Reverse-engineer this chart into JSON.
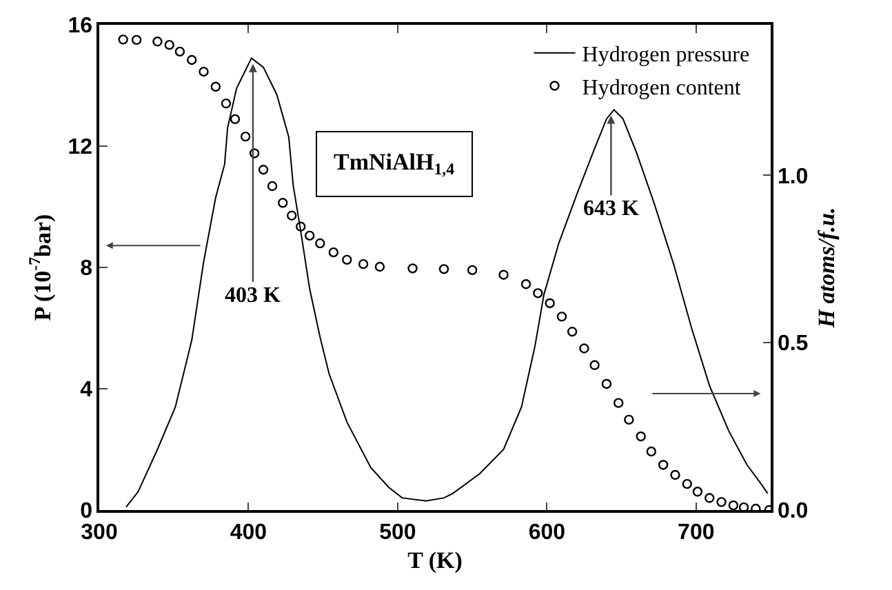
{
  "chart_data": {
    "type": "line",
    "xlabel": "T (K)",
    "ylabel": "P (10$^{-7}$bar)",
    "y2label": "H atoms/f.u.",
    "xlim": [
      300,
      750
    ],
    "xticks": [
      300,
      400,
      500,
      600,
      700
    ],
    "ylim": [
      0,
      16
    ],
    "yticks": [
      0,
      4,
      8,
      12,
      16
    ],
    "y2lim": [
      0,
      1.45
    ],
    "y2ticks": [
      {
        "value": 0,
        "label": "0.0"
      },
      {
        "value": 0.5,
        "label": "0.5"
      },
      {
        "value": 1,
        "label": "1.0"
      }
    ],
    "legend": "top right",
    "grid": false,
    "series": [
      {
        "name": "Hydrogen pressure",
        "type": "line",
        "color": "#000000",
        "marker": "none",
        "line_style": "solid",
        "x": [
          318,
          326,
          339,
          351,
          362,
          370,
          378,
          384,
          386,
          392,
          402,
          410,
          419,
          427,
          430,
          435,
          441,
          448,
          454,
          466,
          482,
          494,
          503,
          519,
          531,
          537,
          555,
          571,
          583,
          592,
          598,
          608,
          620,
          631,
          640,
          645,
          651,
          660,
          672,
          685,
          697,
          709,
          722,
          734,
          743,
          748
        ],
        "values": [
          0.1,
          0.6,
          2.0,
          3.4,
          5.6,
          8.2,
          10.3,
          11.4,
          12.6,
          13.9,
          14.9,
          14.6,
          13.7,
          12.3,
          10.7,
          9.2,
          7.3,
          5.7,
          4.5,
          2.9,
          1.4,
          0.75,
          0.4,
          0.3,
          0.4,
          0.55,
          1.2,
          2.0,
          3.4,
          5.4,
          7.1,
          8.8,
          10.4,
          11.8,
          12.9,
          13.2,
          12.9,
          11.8,
          10.1,
          8.1,
          6.0,
          4.1,
          2.6,
          1.5,
          0.9,
          0.55
        ]
      },
      {
        "name": "Hydrogen content",
        "type": "scatter",
        "axis": "y2",
        "color": "#000000",
        "marker": "circle",
        "x": [
          316,
          325,
          339,
          347,
          354,
          362,
          370,
          378,
          385,
          391,
          398,
          404,
          410,
          416,
          423,
          429,
          435,
          441,
          448,
          457,
          466,
          477,
          488,
          510,
          531,
          550,
          571,
          586,
          594,
          602,
          610,
          617,
          625,
          632,
          640,
          648,
          655,
          663,
          670,
          678,
          686,
          694,
          701,
          709,
          717,
          725,
          732,
          740,
          749
        ],
        "values": [
          1.406,
          1.405,
          1.4,
          1.39,
          1.37,
          1.345,
          1.31,
          1.265,
          1.215,
          1.168,
          1.116,
          1.066,
          1.017,
          0.968,
          0.918,
          0.88,
          0.847,
          0.82,
          0.797,
          0.77,
          0.748,
          0.735,
          0.727,
          0.722,
          0.72,
          0.717,
          0.703,
          0.675,
          0.648,
          0.618,
          0.578,
          0.533,
          0.483,
          0.433,
          0.377,
          0.32,
          0.27,
          0.22,
          0.175,
          0.135,
          0.105,
          0.078,
          0.055,
          0.036,
          0.024,
          0.014,
          0.008,
          0.004,
          0.0
        ]
      }
    ],
    "annotations": [
      {
        "text": "403 K",
        "x": 403,
        "y": 14.8
      },
      {
        "text": "643 K",
        "x": 643,
        "y": 13.1
      },
      "TmNiAlH$_{1,4}$"
    ]
  }
}
